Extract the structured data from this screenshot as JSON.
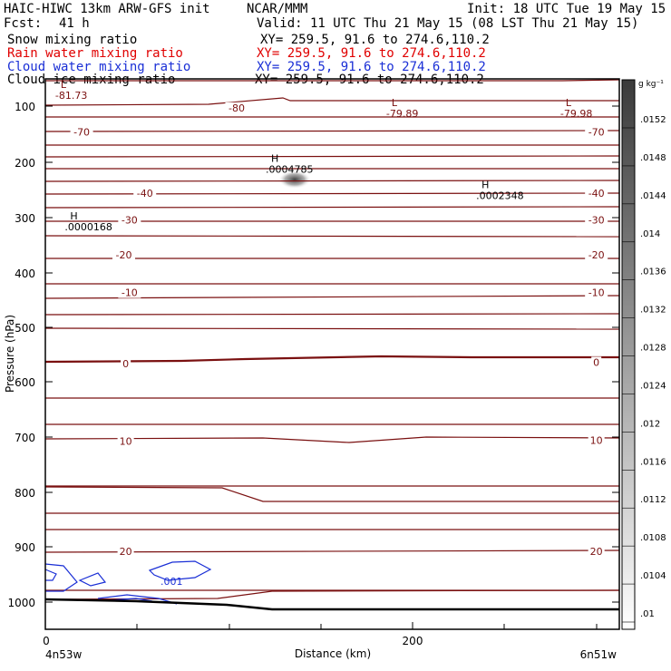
{
  "header": {
    "model": "HAIC-HIWC 13km ARW-GFS init",
    "org": "NCAR/MMM",
    "init": "Init: 18 UTC Tue 19 May 15",
    "fcst_label": "Fcst:",
    "fcst_value": "41 h",
    "valid": "Valid: 11 UTC Thu 21 May 15 (08 LST Thu 21 May 15)"
  },
  "fields": [
    {
      "name": "Snow mixing ratio",
      "xy": "XY= 259.5, 91.6 to 274.6,110.2",
      "color": "#000000"
    },
    {
      "name": "Rain water mixing ratio",
      "xy": "XY= 259.5, 91.6 to 274.6,110.2",
      "color": "#ff0000"
    },
    {
      "name": "Cloud water mixing ratio",
      "xy": "XY= 259.5, 91.6 to 274.6,110.2",
      "color": "#0000ff"
    },
    {
      "name": "Cloud ice mixing ratio",
      "xy": "XY= 259.5, 91.6 to 274.6,110.2",
      "color": "#000000"
    }
  ],
  "colors": {
    "temperature_contour": "#7a1010",
    "cloud_water_contour": "#1a2fd6",
    "terrain": "#000000"
  },
  "chart_data": {
    "type": "contour",
    "ylabel": "Pressure (hPa)",
    "xlabel": "Distance (km)",
    "y_ticks": [
      "100",
      "200",
      "300",
      "400",
      "500",
      "600",
      "700",
      "800",
      "900",
      "1000"
    ],
    "x_ticks": [
      "0",
      "200"
    ],
    "x_start_label": "4n53w",
    "x_end_label": "6n51w",
    "xlim": [
      0,
      300
    ],
    "ylim": [
      1050,
      70
    ],
    "colorbar": {
      "unit": "g kg⁻¹",
      "ticks": [
        ".0152",
        ".0148",
        ".0144",
        ".014",
        ".0136",
        ".0132",
        ".0128",
        ".0124",
        ".012",
        ".0116",
        ".0112",
        ".0108",
        ".0104",
        ".01"
      ]
    },
    "temperature_labels": [
      {
        "text": "-80",
        "x": 100,
        "p": 103
      },
      {
        "text": "-70",
        "x": 19,
        "p": 146
      },
      {
        "text": "-70",
        "x": 288,
        "p": 146
      },
      {
        "text": "-40",
        "x": 52,
        "p": 256
      },
      {
        "text": "-40",
        "x": 288,
        "p": 256
      },
      {
        "text": "-30",
        "x": 44,
        "p": 304
      },
      {
        "text": "-30",
        "x": 288,
        "p": 304
      },
      {
        "text": "-20",
        "x": 41,
        "p": 367
      },
      {
        "text": "-20",
        "x": 288,
        "p": 367
      },
      {
        "text": "-10",
        "x": 44,
        "p": 436
      },
      {
        "text": "-10",
        "x": 288,
        "p": 436
      },
      {
        "text": "0",
        "x": 42,
        "p": 567
      },
      {
        "text": "0",
        "x": 288,
        "p": 564
      },
      {
        "text": "10",
        "x": 42,
        "p": 707
      },
      {
        "text": "10",
        "x": 288,
        "p": 706
      },
      {
        "text": "20",
        "x": 42,
        "p": 908
      },
      {
        "text": "20",
        "x": 288,
        "p": 908
      }
    ],
    "extrema": [
      {
        "marker": "L",
        "value": "-81.73",
        "x": 8,
        "p": 83
      },
      {
        "marker": "L",
        "value": "-79.89",
        "x": 181,
        "p": 100
      },
      {
        "marker": "L",
        "value": "-79.98",
        "x": 272,
        "p": 100
      },
      {
        "marker": "H",
        "value": ".0004785",
        "x": 118,
        "p": 199
      },
      {
        "marker": "H",
        "value": ".0002348",
        "x": 228,
        "p": 247
      },
      {
        "marker": "H",
        "value": ".0000168",
        "x": 13,
        "p": 303
      }
    ],
    "cloud_water_label": {
      "text": ".001",
      "x": 66,
      "p": 962
    }
  }
}
